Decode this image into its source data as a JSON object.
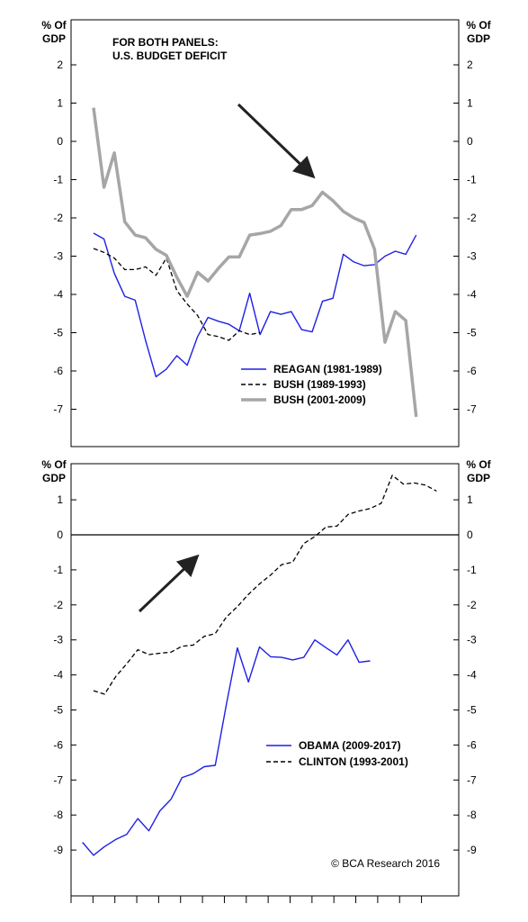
{
  "chart_data": [
    {
      "type": "line",
      "panel": "top",
      "title": "FOR BOTH PANELS:\nU.S. BUDGET DEFICIT",
      "ylabel_left": "% Of\nGDP",
      "ylabel_right": "% Of\nGDP",
      "ylim": [
        -8,
        2.5
      ],
      "yticks": [
        2,
        1,
        0,
        -1,
        -2,
        -3,
        -4,
        -5,
        -6,
        -7
      ],
      "zero_line": false,
      "legend_placement": "bottom-right",
      "arrow": "down-right",
      "series": [
        {
          "name": "REAGAN (1981-1989)",
          "color": "#1f1fe6",
          "style": "solid",
          "x": [
            0,
            1,
            2,
            3,
            4,
            5,
            6,
            7,
            8,
            9,
            10,
            11,
            12,
            13,
            14,
            15,
            16,
            17,
            18,
            19,
            20,
            21,
            22,
            23,
            24,
            25,
            26,
            27,
            28,
            29,
            30,
            31,
            32,
            33,
            34,
            35,
            36
          ],
          "y": [
            -2.4,
            -2.55,
            -3.45,
            -4.05,
            -4.15,
            -5.2,
            -6.15,
            -5.95,
            -5.6,
            -5.85,
            -5.1,
            -4.6,
            -4.7,
            -4.78,
            -4.95,
            -3.97,
            -5.05,
            -4.45,
            -4.52,
            -4.45,
            -4.92,
            -4.98,
            -4.18,
            -4.1,
            -2.95,
            -3.15,
            -3.25,
            -3.22,
            -3.0,
            -2.87,
            -2.95,
            -2.45,
            null,
            null,
            null,
            null,
            null
          ]
        },
        {
          "name": "BUSH (1989-1993)",
          "color": "#000000",
          "style": "dashed",
          "x": [
            0,
            1,
            2,
            3,
            4,
            5,
            6,
            7,
            8,
            9,
            10,
            11,
            12,
            13,
            14,
            15,
            16
          ],
          "y": [
            -2.8,
            -2.9,
            -3.05,
            -3.35,
            -3.35,
            -3.28,
            -3.5,
            -3.05,
            -3.9,
            -4.25,
            -4.55,
            -5.05,
            -5.1,
            -5.2,
            -4.95,
            -5.05,
            -5.0
          ]
        },
        {
          "name": "BUSH (2001-2009)",
          "color": "#a6a6a6",
          "style": "solid",
          "x": [
            0,
            1,
            2,
            3,
            4,
            5,
            6,
            7,
            8,
            9,
            10,
            11,
            12,
            13,
            14,
            15,
            16,
            17,
            18,
            19,
            20,
            21,
            22,
            23,
            24,
            25,
            26,
            27,
            28,
            29,
            30,
            31
          ],
          "y": [
            0.88,
            -1.2,
            -0.3,
            -2.1,
            -2.45,
            -2.52,
            -2.82,
            -2.98,
            -3.55,
            -4.05,
            -3.42,
            -3.65,
            -3.32,
            -3.02,
            -3.02,
            -2.45,
            -2.41,
            -2.35,
            -2.2,
            -1.78,
            -1.78,
            -1.68,
            -1.33,
            -1.55,
            -1.83,
            -2.0,
            -2.12,
            -2.82,
            -5.25,
            -4.45,
            -4.68,
            -7.2
          ]
        }
      ]
    },
    {
      "type": "line",
      "panel": "bottom",
      "ylabel_left": "% Of\nGDP",
      "ylabel_right": "% Of\nGDP",
      "ylim": [
        -9.5,
        1.85
      ],
      "yticks": [
        1,
        0,
        -1,
        -2,
        -3,
        -4,
        -5,
        -6,
        -7,
        -8,
        -9
      ],
      "zero_line": true,
      "legend_placement": "bottom-right",
      "arrow": "up-right",
      "credit": "© BCA Research 2016",
      "series": [
        {
          "name": "OBAMA (2009-2017)",
          "color": "#1f1fe6",
          "style": "solid",
          "x": [
            -1,
            0,
            1,
            2,
            3,
            4,
            5,
            6,
            7,
            8,
            9,
            10,
            11,
            12,
            13,
            14,
            15,
            16,
            17,
            18,
            19,
            20,
            21,
            22,
            23,
            24,
            25,
            26
          ],
          "y": [
            -8.78,
            -9.15,
            -8.9,
            -8.7,
            -8.55,
            -8.1,
            -8.45,
            -7.88,
            -7.55,
            -6.93,
            -6.82,
            -6.62,
            -6.58,
            -4.85,
            -3.23,
            -4.2,
            -3.2,
            -3.48,
            -3.5,
            -3.57,
            -3.5,
            -3.0,
            -3.22,
            -3.43,
            -3.0,
            -3.64,
            -3.6,
            null
          ]
        },
        {
          "name": "CLINTON (1993-2001)",
          "color": "#000000",
          "style": "dashed",
          "x": [
            0,
            1,
            2,
            3,
            4,
            5,
            6,
            7,
            8,
            9,
            10,
            11,
            12,
            13,
            14,
            15,
            16,
            17,
            18,
            19,
            20,
            21,
            22,
            23,
            24,
            25,
            26,
            27,
            28,
            29,
            30,
            31
          ],
          "y": [
            -4.45,
            -4.55,
            -4.05,
            -3.68,
            -3.28,
            -3.42,
            -3.38,
            -3.35,
            -3.18,
            -3.15,
            -2.9,
            -2.82,
            -2.35,
            -2.05,
            -1.7,
            -1.4,
            -1.15,
            -0.85,
            -0.78,
            -0.25,
            -0.05,
            0.22,
            0.25,
            0.58,
            0.68,
            0.75,
            0.9,
            1.7,
            1.45,
            1.48,
            1.42,
            1.25
          ]
        }
      ]
    }
  ]
}
